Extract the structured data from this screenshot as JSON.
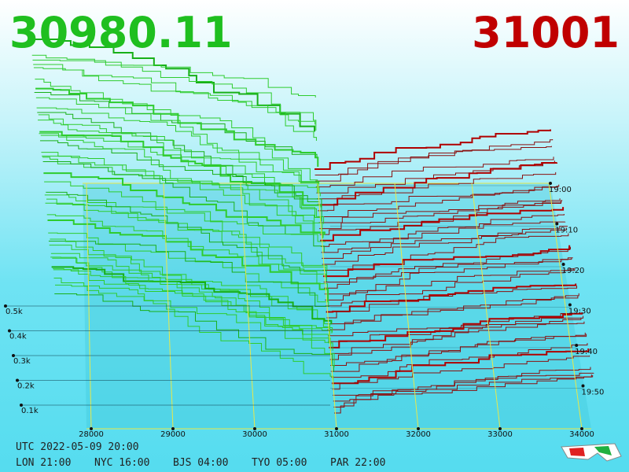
{
  "bid_price": "30980.11",
  "ask_price": "31001",
  "price_axis": [
    "28000",
    "29000",
    "30000",
    "31000",
    "32000",
    "33000",
    "34000"
  ],
  "volume_axis": [
    "0.1k",
    "0.2k",
    "0.3k",
    "0.4k",
    "0.5k"
  ],
  "time_axis": [
    "19:00",
    "19:10",
    "19:20",
    "19:30",
    "19:40",
    "19:50"
  ],
  "footer": {
    "utc": "UTC 2022-05-09 20:00",
    "zones": [
      "LON 21:00",
      "NYC 16:00",
      "BJS 04:00",
      "TYO 05:00",
      "PAR 22:00"
    ]
  }
}
